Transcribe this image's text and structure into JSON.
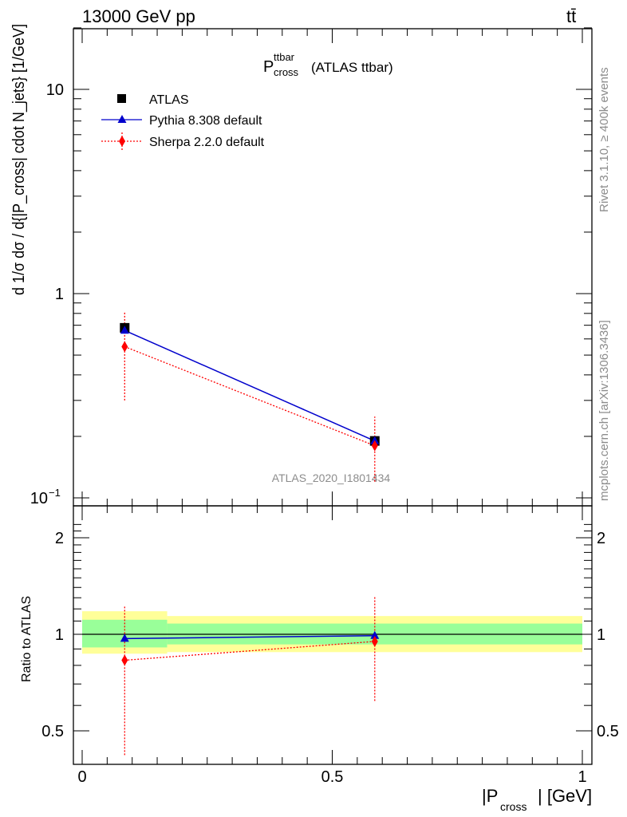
{
  "header": {
    "energy_label": "13000 GeV pp",
    "process_label": "tt̄"
  },
  "title": {
    "main": "P",
    "superscript": "ttbar",
    "subscript": "cross",
    "suffix": "(ATLAS ttbar)"
  },
  "watermark": "ATLAS_2020_I1801434",
  "side_labels": {
    "rivet": "Rivet 3.1.10, ≥ 400k events",
    "mcplots": "mcplots.cern.ch [arXiv:1306.3436]"
  },
  "legend": [
    {
      "label": "ATLAS"
    },
    {
      "label": "Pythia 8.308 default"
    },
    {
      "label": "Sherpa 2.2.0 default"
    }
  ],
  "colors": {
    "data": "#000000",
    "pythia": "#0000cc",
    "sherpa": "#ff0000",
    "band_inner": "#99ff99",
    "band_outer": "#ffff99"
  },
  "axis": {
    "ylabel_main": "d 1/σ dσ / d{|P_cross| cdot N_jets} [1/GeV]",
    "ylabel_ratio": "Ratio to ATLAS",
    "xlabel_main": "|P",
    "xlabel_sub": "cross",
    "xlabel_unit": "| [GeV]",
    "y_main_ticks": [
      "10",
      "1",
      "10"
    ],
    "y_main_exp": "−1",
    "y_ratio_ticks": [
      "2",
      "1",
      "0.5"
    ],
    "x_ticks": [
      "0",
      "0.5",
      "1"
    ]
  },
  "chart_data": {
    "type": "scatter",
    "x_range": [
      0,
      1
    ],
    "y_main_range": [
      0.1,
      20
    ],
    "y_main_scale": "log",
    "y_ratio_range": [
      0.4,
      2.3
    ],
    "y_ratio_scale": "log",
    "bin_edges": [
      0,
      0.17,
      1
    ],
    "x": [
      0.085,
      0.585
    ],
    "series": [
      {
        "name": "ATLAS",
        "values": [
          0.68,
          0.19
        ],
        "band_inner": [
          [
            0.91,
            1.11
          ],
          [
            0.93,
            1.08
          ]
        ],
        "band_outer": [
          [
            0.87,
            1.18
          ],
          [
            0.88,
            1.14
          ]
        ]
      },
      {
        "name": "Pythia 8.308 default",
        "values": [
          0.66,
          0.19
        ],
        "ratio": [
          0.97,
          0.99
        ]
      },
      {
        "name": "Sherpa 2.2.0 default",
        "values": [
          0.55,
          0.18
        ],
        "yerr_low": [
          0.3,
          0.12
        ],
        "yerr_high": [
          0.82,
          0.25
        ],
        "ratio": [
          0.83,
          0.95
        ],
        "ratio_err_low": [
          0.42,
          0.62
        ],
        "ratio_err_high": [
          1.22,
          1.32
        ]
      }
    ],
    "legend_position": "top-left"
  }
}
